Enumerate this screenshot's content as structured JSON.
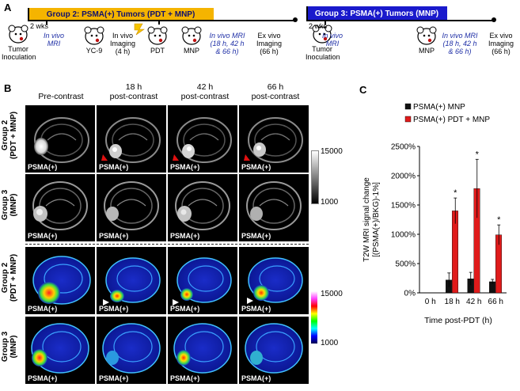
{
  "panel_letters": {
    "a": "A",
    "b": "B",
    "c": "C"
  },
  "panel_a": {
    "group2_banner": "Group 2: PSMA(+) Tumors (PDT + MNP)",
    "group3_banner": "Group 3: PSMA(+) Tumors (MNP)",
    "group2_steps": {
      "tumor_inoculation": "Tumor\nInoculation",
      "two_wks": "2 wks",
      "invivo_mri": "In vivo\nMRI",
      "yc9": "YC-9",
      "invivo_imaging": "In vivo\nImaging\n(4 h)",
      "pdt": "PDT",
      "mnp": "MNP",
      "invivo_mri_times": "In vivo MRI\n(18 h, 42 h\n& 66 h)",
      "exvivo_imaging": "Ex vivo\nImaging\n(66 h)"
    },
    "group3_steps": {
      "tumor_inoculation": "Tumor\nInoculation",
      "two_wks": "2 wks",
      "invivo_mri": "In vivo\nMRI",
      "mnp": "MNP",
      "invivo_mri_times": "In vivo MRI\n(18 h, 42 h\n& 66 h)",
      "exvivo_imaging": "Ex vivo\nImaging\n(66 h)"
    }
  },
  "panel_b": {
    "columns": [
      "Pre-contrast",
      "18 h\npost-contrast",
      "42 h\npost-contrast",
      "66 h\npost-contrast"
    ],
    "rows": [
      "Group 2\n(PDT + MNP)",
      "Group 3\n(MNP)",
      "Group 2\n(PDT + MNP)",
      "Group 3\n(MNP)"
    ],
    "image_label": "PSMA(+)",
    "colorbar_gray": {
      "max": "15000",
      "min": "1000"
    },
    "colorbar_color": {
      "max": "15000",
      "min": "1000"
    }
  },
  "colors": {
    "group2_banner": "#f5b400",
    "group3_banner": "#1a1acc",
    "bar_mnp": "#111111",
    "bar_pdt_mnp": "#e01b1b",
    "marker_red": "#e01010",
    "marker_white": "#ffffff"
  },
  "chart_data": {
    "type": "bar",
    "ylabel": "T2W MRI signal change\n[(PSMA(+)/BKG)-1%]",
    "xlabel": "Time post-PDT  (h)",
    "categories": [
      "0 h",
      "18 h",
      "42 h",
      "66 h"
    ],
    "ylim": [
      0,
      2500
    ],
    "yticks": [
      "0%",
      "500%",
      "1000%",
      "1500%",
      "2000%",
      "2500%"
    ],
    "legend": [
      "PSMA(+) MNP",
      "PSMA(+) PDT + MNP"
    ],
    "series": [
      {
        "name": "PSMA(+) MNP",
        "values": [
          0,
          220,
          240,
          190
        ],
        "errors": [
          0,
          120,
          110,
          40
        ]
      },
      {
        "name": "PSMA(+) PDT + MNP",
        "values": [
          0,
          1400,
          1780,
          990
        ],
        "errors": [
          0,
          220,
          500,
          170
        ]
      }
    ],
    "significance": [
      "",
      "*",
      "*",
      "*"
    ]
  }
}
